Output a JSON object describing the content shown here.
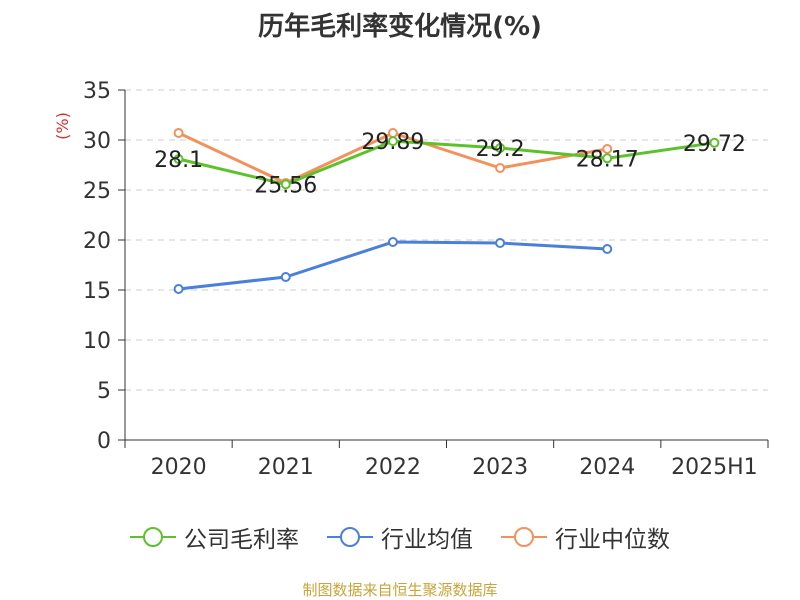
{
  "title": "历年毛利率变化情况(%)",
  "source_text": "制图数据来自恒生聚源数据库",
  "chart_data": {
    "type": "line",
    "title": "历年毛利率变化情况(%)",
    "ylabel": "(%)",
    "xlabel": "",
    "ylim": [
      0,
      35
    ],
    "yticks": [
      0,
      5,
      10,
      15,
      20,
      25,
      30,
      35
    ],
    "grid": true,
    "legend_position": "bottom",
    "categories": [
      "2020",
      "2021",
      "2022",
      "2023",
      "2024",
      "2025H1"
    ],
    "series": [
      {
        "name": "公司毛利率",
        "color": "#5cc22c",
        "values": [
          28.1,
          25.56,
          29.89,
          29.2,
          28.17,
          29.72
        ],
        "labels": [
          "28.1",
          "25.56",
          "29.89",
          "29.2",
          "28.17",
          "29.72"
        ]
      },
      {
        "name": "行业均值",
        "color": "#4a7fdb",
        "values": [
          15.1,
          16.3,
          19.8,
          19.7,
          19.1,
          null
        ],
        "labels": null
      },
      {
        "name": "行业中位数",
        "color": "#f4915a",
        "values": [
          30.7,
          25.7,
          30.7,
          27.2,
          29.1,
          null
        ],
        "labels": null
      }
    ]
  }
}
